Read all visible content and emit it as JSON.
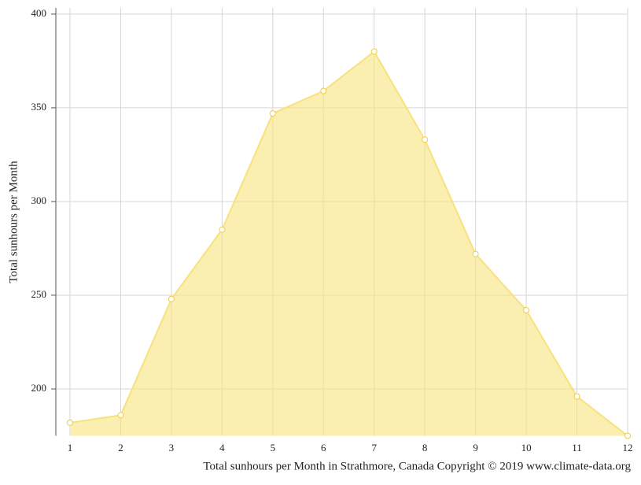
{
  "chart_data": {
    "type": "area",
    "title": "Total sunhours per Month in Strathmore, Canada Copyright © 2019 www.climate-data.org",
    "y_label": "Total sunhours per Month",
    "x": [
      1,
      2,
      3,
      4,
      5,
      6,
      7,
      8,
      9,
      10,
      11,
      12
    ],
    "series": [
      {
        "color": "#f7e27c",
        "values": [
          182,
          186,
          248,
          285,
          347,
          359,
          380,
          333,
          272,
          242,
          196,
          175
        ]
      }
    ],
    "xlim": [
      1,
      12
    ],
    "xticks": [
      1,
      2,
      3,
      4,
      5,
      6,
      7,
      8,
      9,
      10,
      11,
      12
    ],
    "ylim": [
      175,
      405
    ],
    "yticks": [
      200,
      250,
      300,
      350,
      400
    ],
    "grid": true
  }
}
